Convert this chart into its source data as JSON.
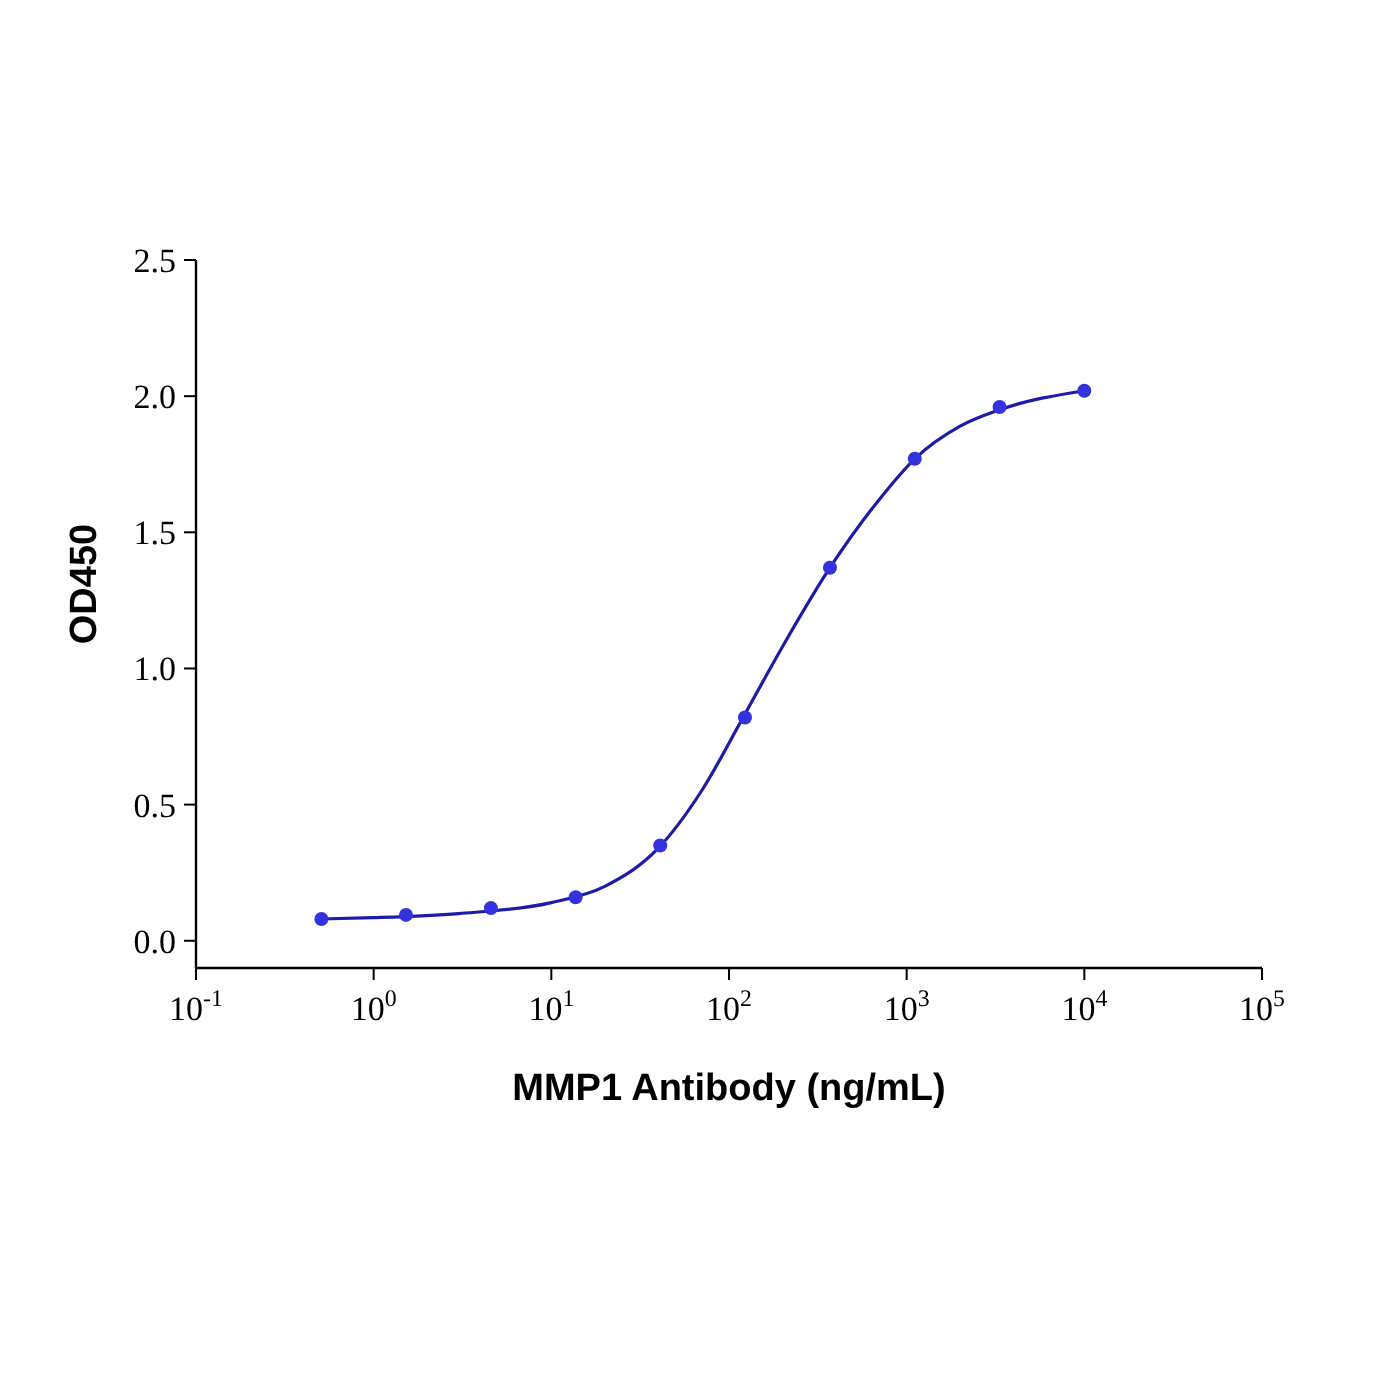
{
  "chart_data": {
    "type": "scatter",
    "xlabel": "MMP1 Antibody (ng/mL)",
    "ylabel": "OD450",
    "log": "x",
    "xlim": [
      0.1,
      100000
    ],
    "ylim": [
      -0.1,
      2.5
    ],
    "xticks": [
      {
        "value": 0.1,
        "label": "10$^{-1}$"
      },
      {
        "value": 1,
        "label": "10$^{0}$"
      },
      {
        "value": 10,
        "label": "10$^{1}$"
      },
      {
        "value": 100,
        "label": "10$^{2}$"
      },
      {
        "value": 1000,
        "label": "10$^{3}$"
      },
      {
        "value": 10000,
        "label": "10$^{4}$"
      },
      {
        "value": 100000,
        "label": "10$^{5}$"
      }
    ],
    "yticks": [
      {
        "value": 0,
        "label": "0.0"
      },
      {
        "value": 0.5,
        "label": "0.5"
      },
      {
        "value": 1,
        "label": "1.0"
      },
      {
        "value": 1.5,
        "label": "1.5"
      },
      {
        "value": 2,
        "label": "2.0"
      },
      {
        "value": 2.5,
        "label": "2.5"
      }
    ],
    "grid": false,
    "series": [
      {
        "type": "line",
        "color": "#1c1ca8",
        "marker": "none",
        "line_style": "solid",
        "x": [
          0.5,
          1,
          3,
          10,
          20,
          40,
          70,
          120,
          200,
          370,
          700,
          1111,
          2000,
          3333,
          10000
        ],
        "values": [
          0.08,
          0.085,
          0.1,
          0.14,
          0.2,
          0.34,
          0.55,
          0.82,
          1.08,
          1.37,
          1.62,
          1.77,
          1.89,
          1.95,
          2.02
        ]
      },
      {
        "color": "#3333dd",
        "marker": "circle",
        "x": [
          0.508,
          1.52,
          4.57,
          13.7,
          41,
          123,
          370,
          1111,
          3333,
          10000
        ],
        "values": [
          0.08,
          0.095,
          0.12,
          0.16,
          0.35,
          0.82,
          1.37,
          1.77,
          1.96,
          2.02
        ]
      }
    ]
  }
}
